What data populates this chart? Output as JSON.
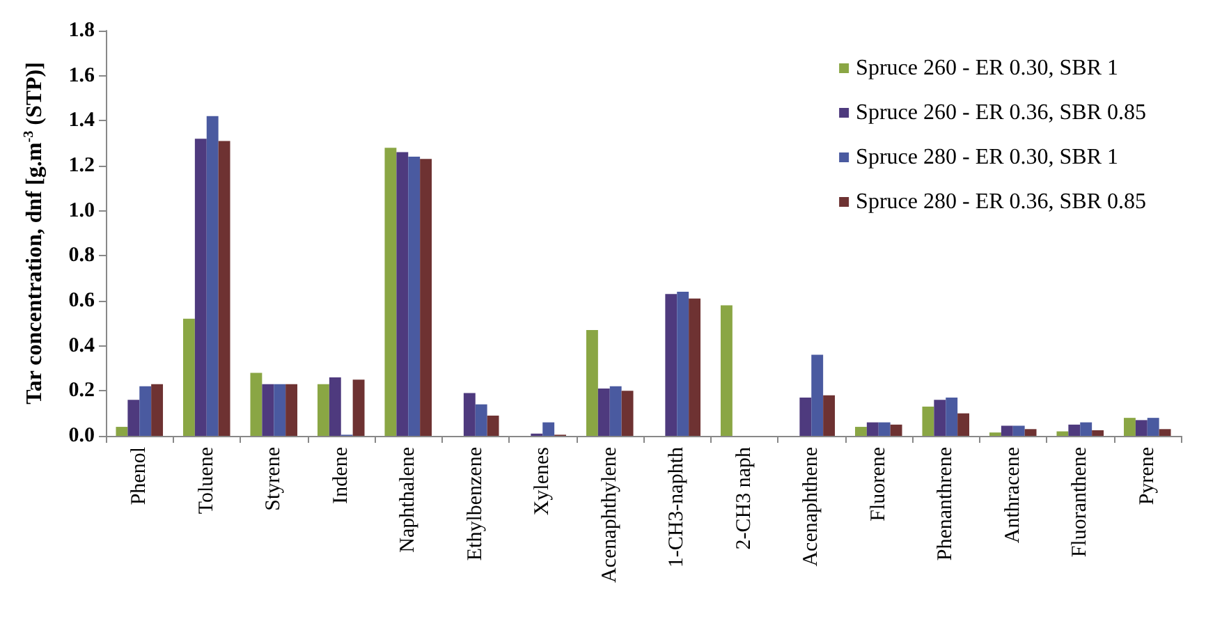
{
  "chart_data": {
    "type": "bar",
    "ylabel": "Tar concentration, dnf [g.m$^{-3}$ (STP)]",
    "categories": [
      "Phenol",
      "Toluene",
      "Styrene",
      "Indene",
      "Naphthalene",
      "Ethylbenzene",
      "Xylenes",
      "Acenaphthylene",
      "1-CH3-naphth",
      "2-CH3 naph",
      "Acenaphthene",
      "Fluorene",
      "Phenanthrene",
      "Anthracene",
      "Fluoranthene",
      "Pyrene"
    ],
    "series": [
      {
        "name": "Spruce 260 - ER 0.30, SBR 1",
        "color": "#8aa644",
        "values": [
          0.04,
          0.52,
          0.28,
          0.23,
          1.28,
          null,
          null,
          0.47,
          null,
          0.58,
          null,
          0.04,
          0.13,
          0.015,
          0.02,
          0.08
        ]
      },
      {
        "name": "Spruce 260 - ER 0.36, SBR 0.85",
        "color": "#4e3a7e",
        "values": [
          0.16,
          1.32,
          0.23,
          0.26,
          1.26,
          0.19,
          0.01,
          0.21,
          0.63,
          null,
          0.17,
          0.06,
          0.16,
          0.045,
          0.05,
          0.07
        ]
      },
      {
        "name": "Spruce 280 - ER 0.30, SBR 1",
        "color": "#4a5aa0",
        "values": [
          0.22,
          1.42,
          0.23,
          0.005,
          1.24,
          0.14,
          0.06,
          0.22,
          0.64,
          null,
          0.36,
          0.06,
          0.17,
          0.045,
          0.06,
          0.08
        ]
      },
      {
        "name": "Spruce 280 - ER 0.36, SBR 0.85",
        "color": "#6e3232",
        "values": [
          0.23,
          1.31,
          0.23,
          0.25,
          1.23,
          0.09,
          0.005,
          0.2,
          0.61,
          null,
          0.18,
          0.05,
          0.1,
          0.03,
          0.025,
          0.03
        ]
      }
    ],
    "ylim": [
      0,
      1.8
    ],
    "yticks": [
      {
        "value": 0,
        "label": "0.0"
      },
      {
        "value": 0.2,
        "label": "0.2"
      },
      {
        "value": 0.4,
        "label": "0.4"
      },
      {
        "value": 0.6,
        "label": "0.6"
      },
      {
        "value": 0.8,
        "label": "0.8"
      },
      {
        "value": 1,
        "label": "1.0"
      },
      {
        "value": 1.2,
        "label": "1.2"
      },
      {
        "value": 1.4,
        "label": "1.4"
      },
      {
        "value": 1.6,
        "label": "1.6"
      },
      {
        "value": 1.8,
        "label": "1.8"
      }
    ],
    "grid": false,
    "legend": "top right"
  }
}
